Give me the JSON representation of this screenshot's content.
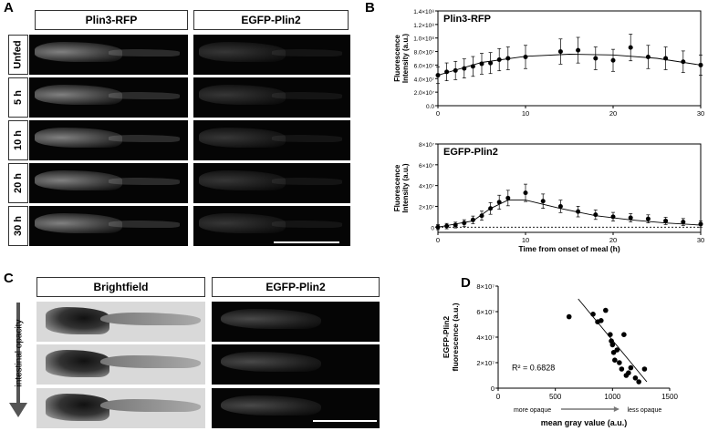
{
  "panels": {
    "A": {
      "letter": "A",
      "columns": [
        "Plin3-RFP",
        "EGFP-Plin2"
      ],
      "rows": [
        "Unfed",
        "5 h",
        "10 h",
        "20 h",
        "30 h"
      ]
    },
    "B": {
      "letter": "B"
    },
    "C": {
      "letter": "C",
      "columns": [
        "Brightfield",
        "EGFP-Plin2"
      ],
      "side_label": "intestinal opacity"
    },
    "D": {
      "letter": "D"
    }
  },
  "chart_data": [
    {
      "type": "line",
      "title": "Plin3-RFP",
      "xlabel": "",
      "ylabel": "Fluorescence Intensity (a.u.)",
      "xlim": [
        0,
        30
      ],
      "ylim": [
        0,
        140000000
      ],
      "xticks": [
        "0",
        "10",
        "20",
        "30"
      ],
      "yticks": [
        "0.0",
        "2.0×10⁷",
        "4.0×10⁷",
        "6.0×10⁷",
        "8.0×10⁷",
        "1.0×10⁸",
        "1.2×10⁸",
        "1.4×10⁸"
      ],
      "series": [
        {
          "x": [
            0,
            1,
            2,
            3,
            4,
            5,
            6,
            7,
            8,
            10,
            14,
            16,
            18,
            20,
            22,
            24,
            26,
            28,
            30
          ],
          "values": [
            45000000,
            50000000,
            52000000,
            55000000,
            58000000,
            62000000,
            63000000,
            68000000,
            70000000,
            72000000,
            80000000,
            82000000,
            70000000,
            67000000,
            86000000,
            72000000,
            70000000,
            65000000,
            60000000
          ]
        }
      ],
      "fit": {
        "x": [
          0,
          5,
          10,
          15,
          20,
          25,
          30
        ],
        "values": [
          45000000,
          64000000,
          73000000,
          76000000,
          75000000,
          70000000,
          60000000
        ]
      }
    },
    {
      "type": "line",
      "title": "EGFP-Plin2",
      "xlabel": "Time from onset of meal (h)",
      "ylabel": "Fluorescence Intensity (a.u.)",
      "xlim": [
        0,
        30
      ],
      "ylim": [
        -5000000,
        80000000
      ],
      "xticks": [
        "0",
        "10",
        "20",
        "30"
      ],
      "yticks": [
        "0",
        "2×10⁷",
        "4×10⁷",
        "6×10⁷",
        "8×10⁷"
      ],
      "series": [
        {
          "x": [
            0,
            1,
            2,
            3,
            4,
            5,
            6,
            7,
            8,
            10,
            12,
            14,
            16,
            18,
            20,
            22,
            24,
            26,
            28,
            30
          ],
          "values": [
            0,
            1000000,
            2000000,
            4000000,
            7000000,
            11000000,
            18000000,
            24000000,
            28000000,
            33000000,
            25000000,
            20000000,
            15000000,
            12000000,
            10000000,
            9000000,
            8000000,
            6000000,
            5000000,
            3000000
          ]
        }
      ],
      "fit": {
        "x": [
          0,
          4,
          6,
          8,
          10,
          14,
          18,
          22,
          26,
          30
        ],
        "values": [
          0,
          6000000,
          18000000,
          26000000,
          26000000,
          18000000,
          11000000,
          7000000,
          4000000,
          2000000
        ]
      }
    },
    {
      "type": "scatter",
      "title": "",
      "xlabel": "mean gray value (a.u.)",
      "ylabel": "EGFP-Plin2 fluorescence (a.u.)",
      "xlim": [
        0,
        1500
      ],
      "ylim": [
        0,
        80000000
      ],
      "xticks": [
        "0",
        "500",
        "1000",
        "1500"
      ],
      "yticks": [
        "0",
        "2×10⁷",
        "4×10⁷",
        "6×10⁷",
        "8×10⁷"
      ],
      "annotation": "R² = 0.6828",
      "arrow_left": "more opaque",
      "arrow_right": "less opaque",
      "x": [
        620,
        830,
        870,
        900,
        940,
        980,
        990,
        1000,
        1010,
        1020,
        1040,
        1060,
        1080,
        1100,
        1120,
        1140,
        1160,
        1200,
        1230,
        1280
      ],
      "y": [
        56000000,
        58000000,
        52000000,
        53000000,
        61000000,
        42000000,
        37000000,
        34000000,
        28000000,
        22000000,
        30000000,
        20000000,
        15000000,
        42000000,
        10000000,
        12000000,
        16000000,
        8000000,
        5000000,
        15000000
      ],
      "fit": {
        "x": [
          700,
          1300
        ],
        "values": [
          70000000,
          5000000
        ]
      }
    }
  ]
}
